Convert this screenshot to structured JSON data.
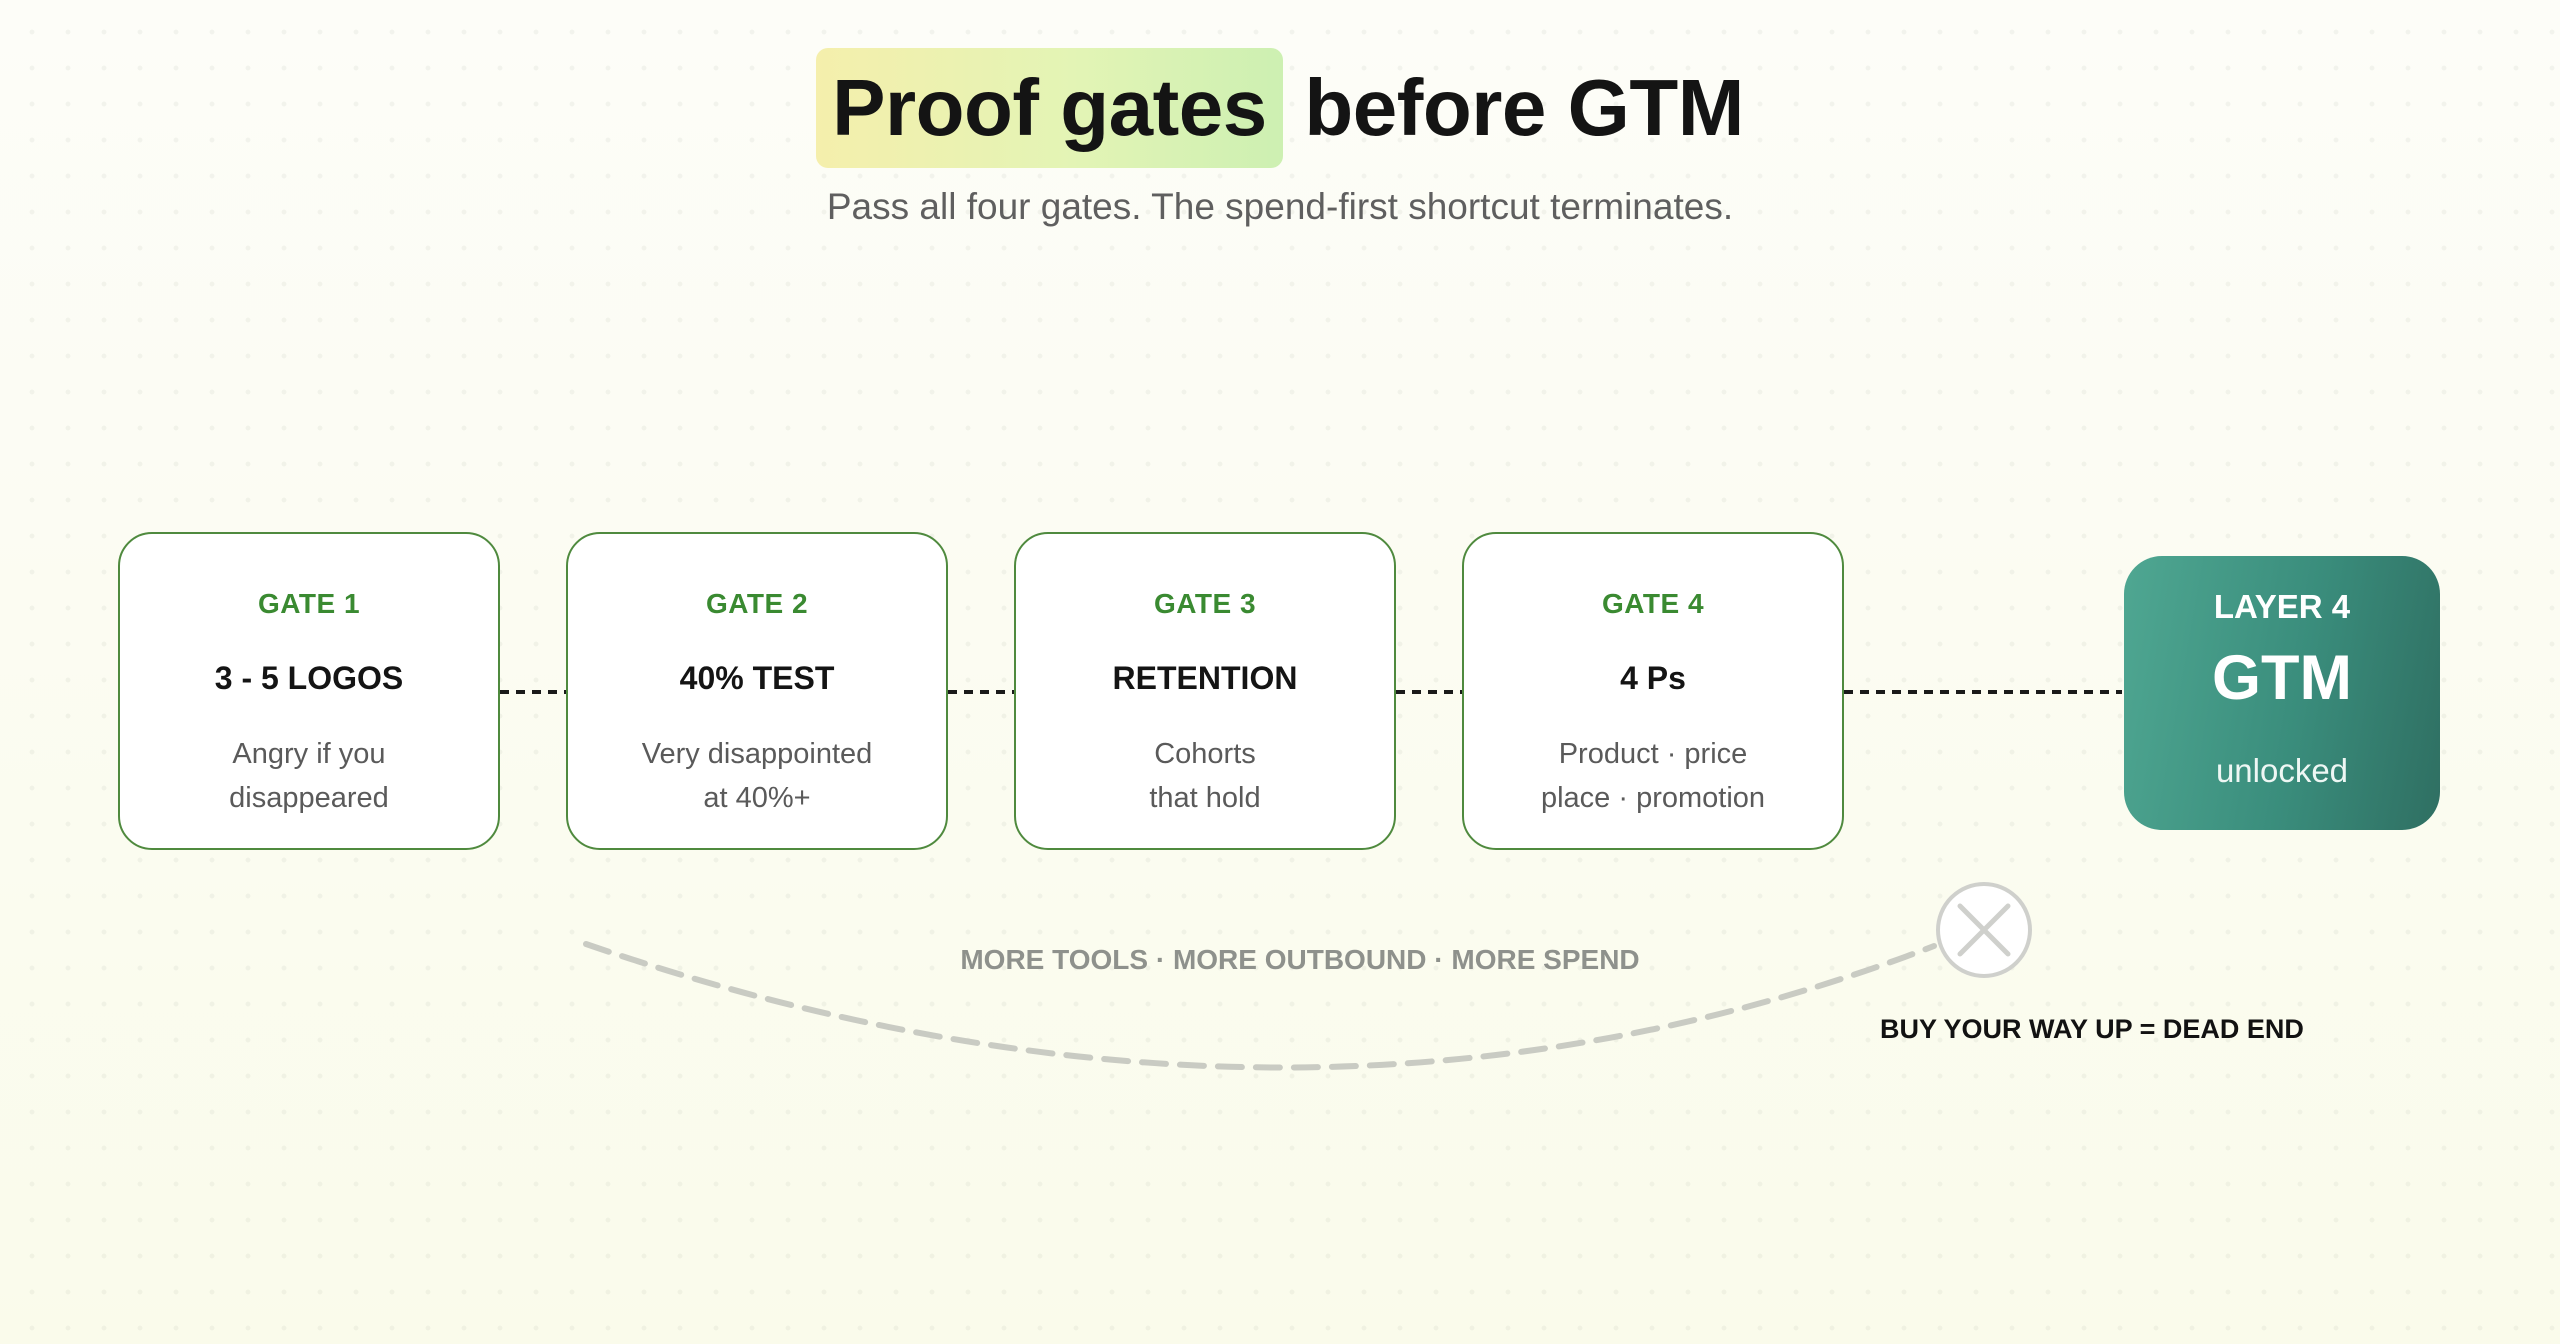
{
  "title": {
    "highlight": "Proof gates",
    "rest": "before GTM"
  },
  "subtitle": "Pass all four gates. The spend-first shortcut terminates.",
  "gates": [
    {
      "tag": "GATE 1",
      "name": "3 - 5 LOGOS",
      "desc_line1": "Angry if you",
      "desc_line2": "disappeared"
    },
    {
      "tag": "GATE 2",
      "name": "40% TEST",
      "desc_line1": "Very disappointed",
      "desc_line2": "at 40%+"
    },
    {
      "tag": "GATE 3",
      "name": "RETENTION",
      "desc_line1": "Cohorts",
      "desc_line2": "that hold"
    },
    {
      "tag": "GATE 4",
      "name": "4 Ps",
      "desc_line1": "Product · price",
      "desc_line2": "place · promotion"
    }
  ],
  "destination": {
    "layer": "LAYER 4",
    "name": "GTM",
    "state": "unlocked"
  },
  "shortcut": {
    "label": "MORE TOOLS · MORE OUTBOUND · MORE SPEND",
    "dead_end": "BUY YOUR WAY UP = DEAD END",
    "end_icon": "x-circle-icon"
  },
  "colors": {
    "gate_border": "#4f8a3e",
    "gate_tag": "#3a8a31",
    "gtm_start": "#4fa792",
    "gtm_end": "#2f6f62",
    "shortcut_path": "#c9cbc3"
  }
}
